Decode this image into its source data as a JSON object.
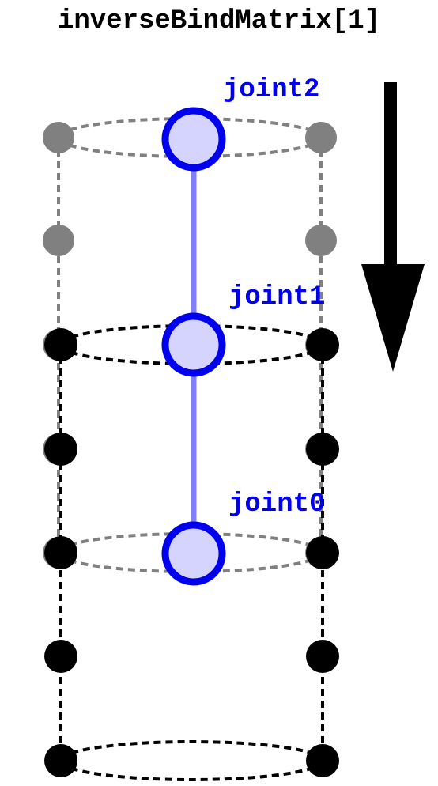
{
  "title": "inverseBindMatrix[1]",
  "joints": [
    {
      "label": "joint2"
    },
    {
      "label": "joint1"
    },
    {
      "label": "joint0"
    }
  ],
  "colors": {
    "joint": "#0000ee",
    "joint_fill": "#d4d4ff",
    "bone": "#8080ff",
    "rest_mesh": "#808080",
    "transformed_mesh": "#000000",
    "arrow": "#000000"
  },
  "icons": {
    "direction": "arrow-down-icon"
  }
}
